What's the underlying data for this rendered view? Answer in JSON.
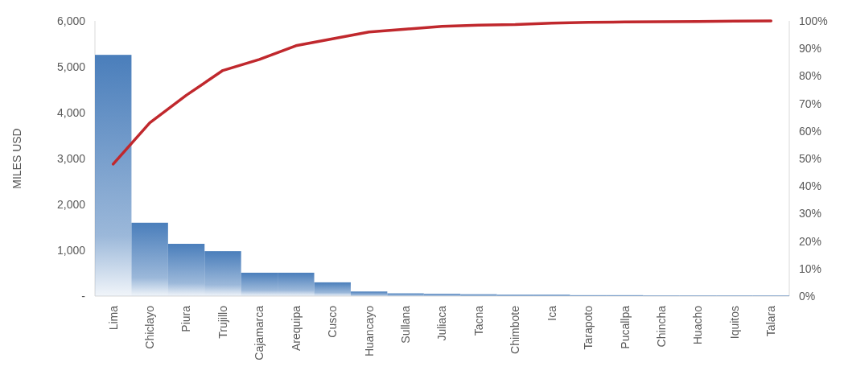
{
  "chart_data": {
    "type": "bar",
    "ylabel": "MILES USD",
    "categories": [
      "Lima",
      "Chiclayo",
      "Piura",
      "Trujillo",
      "Cajamarca",
      "Arequipa",
      "Cusco",
      "Huancayo",
      "Sullana",
      "Juliaca",
      "Tacna",
      "Chimbote",
      "Ica",
      "Tarapoto",
      "Pucallpa",
      "Chincha",
      "Huacho",
      "Iquitos",
      "Talara"
    ],
    "series": [
      {
        "color": "#4a7ebb",
        "values": [
          5260,
          1600,
          1140,
          980,
          510,
          510,
          300,
          100,
          60,
          50,
          40,
          30,
          30,
          20,
          20,
          10,
          10,
          10,
          10
        ]
      },
      {
        "type": "line",
        "axis": "y2",
        "color": "#c0282d",
        "values": [
          48,
          63,
          73,
          82,
          86,
          91,
          93.5,
          96,
          97,
          98,
          98.5,
          98.7,
          99.2,
          99.5,
          99.6,
          99.7,
          99.8,
          99.9,
          100
        ]
      }
    ],
    "ylim": [
      0,
      6000
    ],
    "yticks": [
      {
        "value": 0,
        "label": "-"
      },
      {
        "value": 1000,
        "label": "1,000"
      },
      {
        "value": 2000,
        "label": "2,000"
      },
      {
        "value": 3000,
        "label": "3,000"
      },
      {
        "value": 4000,
        "label": "4,000"
      },
      {
        "value": 5000,
        "label": "5,000"
      },
      {
        "value": 6000,
        "label": "6,000"
      }
    ],
    "y2lim": [
      0,
      100
    ],
    "y2ticks": [
      {
        "value": 0,
        "label": "0%"
      },
      {
        "value": 10,
        "label": "10%"
      },
      {
        "value": 20,
        "label": "20%"
      },
      {
        "value": 30,
        "label": "30%"
      },
      {
        "value": 40,
        "label": "40%"
      },
      {
        "value": 50,
        "label": "50%"
      },
      {
        "value": 60,
        "label": "60%"
      },
      {
        "value": 70,
        "label": "70%"
      },
      {
        "value": 80,
        "label": "80%"
      },
      {
        "value": 90,
        "label": "90%"
      },
      {
        "value": 100,
        "label": "100%"
      }
    ]
  }
}
